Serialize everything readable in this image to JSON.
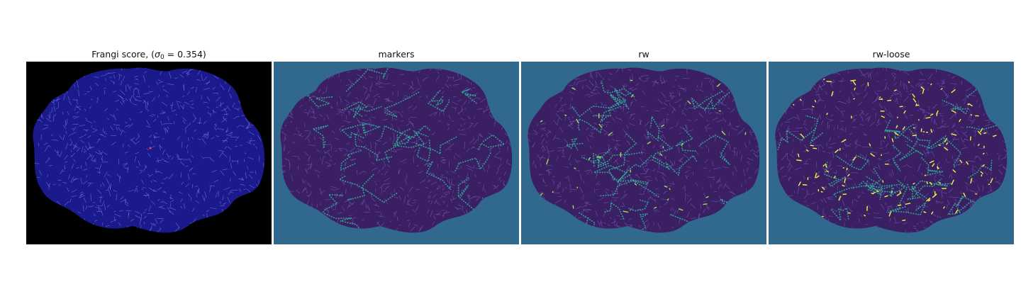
{
  "panels": [
    {
      "title_prefix": "Frangi score, (",
      "title_math": "σ",
      "title_sub": "0",
      "title_suffix": " = 0.354)",
      "background": "#000000",
      "fill": "#1a1a8c",
      "line": "#8a8aff",
      "accent": "#ff3b3b"
    },
    {
      "title": "markers",
      "background": "#31688e",
      "fill": "#3b1f63",
      "line": "#7f6bd6",
      "accent": "#2fb69a"
    },
    {
      "title": "rw",
      "background": "#31688e",
      "fill": "#3b1f63",
      "line": "#7f6bd6",
      "accent": "#2fb69a",
      "highlight": "#a6e04a"
    },
    {
      "title": "rw-loose",
      "background": "#31688e",
      "fill": "#3b1f63",
      "line": "#7f6bd6",
      "accent": "#2fb69a",
      "highlight": "#f2f542"
    }
  ]
}
